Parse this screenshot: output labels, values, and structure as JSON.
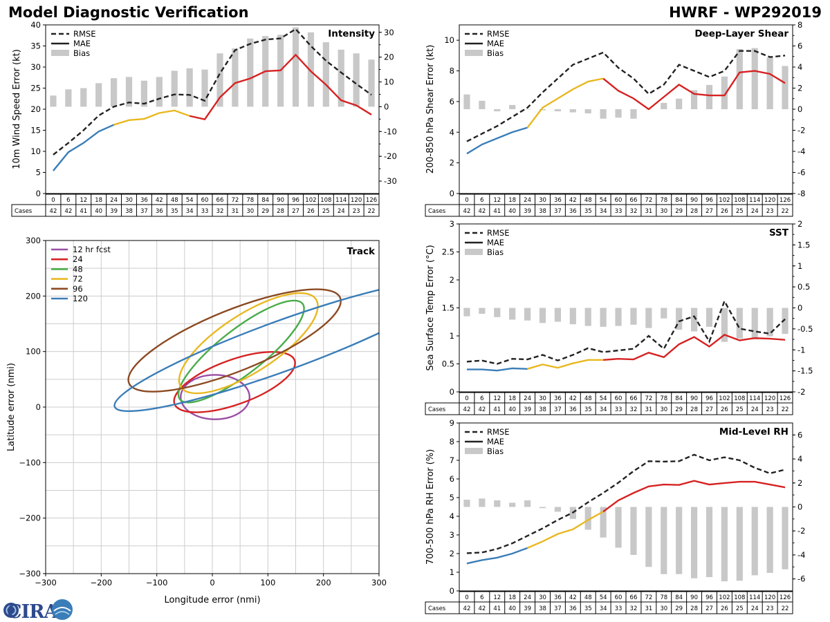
{
  "header": {
    "title_left": "Model Diagnostic Verification",
    "title_right": "HWRF - WP292019"
  },
  "logo": {
    "text": "CIRA"
  },
  "colors": {
    "rmse": "#222222",
    "bias": "#c8c8c8",
    "seg_blue": "#3a7db8",
    "seg_yellow": "#e8b820",
    "seg_red": "#d62222",
    "grid": "#cccccc",
    "track_12": "#9b4ea6",
    "track_24": "#d62222",
    "track_48": "#4aac4a",
    "track_72": "#e8b820",
    "track_96": "#8b4a22",
    "track_120": "#3a7db8"
  },
  "common": {
    "leads": [
      0,
      6,
      12,
      18,
      24,
      30,
      36,
      42,
      48,
      54,
      60,
      66,
      72,
      78,
      84,
      90,
      96,
      102,
      108,
      114,
      120,
      126
    ],
    "cases": [
      42,
      42,
      41,
      40,
      39,
      38,
      37,
      36,
      35,
      34,
      33,
      32,
      31,
      30,
      29,
      28,
      27,
      26,
      25,
      24,
      23,
      22
    ],
    "cases_label": "Cases",
    "legend": [
      "RMSE",
      "MAE",
      "Bias"
    ]
  },
  "chart_data": [
    {
      "id": "intensity",
      "type": "line",
      "title": "Intensity",
      "ylabel": "10m Wind Speed Error (kt)",
      "ylim": [
        0,
        40
      ],
      "yticks": [
        0,
        5,
        10,
        15,
        20,
        25,
        30,
        35,
        40
      ],
      "y2lim": [
        -35,
        33
      ],
      "y2ticks": [
        -30,
        -20,
        -10,
        0,
        10,
        20,
        30
      ],
      "rmse": [
        9.2,
        12,
        15,
        18.5,
        20.6,
        21.6,
        21.3,
        22.5,
        23.5,
        23.4,
        22,
        28.5,
        34,
        35.5,
        36.5,
        36.8,
        39,
        35,
        31.5,
        28.7,
        26,
        23.4
      ],
      "mae": [
        5.4,
        9.8,
        12,
        14.7,
        16.3,
        17.4,
        17.7,
        19.1,
        19.7,
        18.4,
        17.6,
        22.8,
        26.2,
        27.3,
        29,
        29.2,
        32.9,
        29,
        25.8,
        22.1,
        20.9,
        18.7
      ],
      "bias": [
        4.5,
        7,
        7.5,
        9.5,
        11.5,
        12,
        10.5,
        12,
        14.5,
        15.5,
        15,
        21.5,
        23.5,
        27.5,
        28.5,
        29,
        32,
        30,
        26,
        23,
        21.5,
        19
      ]
    },
    {
      "id": "shear",
      "type": "line",
      "title": "Deep-Layer Shear",
      "ylabel": "200-850 hPa Shear Error (kt)",
      "ylim": [
        0,
        11
      ],
      "yticks": [
        0,
        2,
        4,
        6,
        8,
        10
      ],
      "y2lim": [
        -8,
        8
      ],
      "y2ticks": [
        -8,
        -6,
        -4,
        -2,
        0,
        2,
        4,
        6,
        8
      ],
      "rmse": [
        3.4,
        3.9,
        4.4,
        5.0,
        5.6,
        6.6,
        7.5,
        8.4,
        8.8,
        9.2,
        8.2,
        7.5,
        6.5,
        7.1,
        8.4,
        8.0,
        7.6,
        8.0,
        9.3,
        9.3,
        8.9,
        9.0
      ],
      "mae": [
        2.6,
        3.2,
        3.6,
        4.0,
        4.3,
        5.6,
        6.2,
        6.8,
        7.3,
        7.5,
        6.7,
        6.2,
        5.5,
        6.3,
        7.1,
        6.5,
        6.4,
        6.4,
        7.9,
        8.0,
        7.8,
        7.2
      ],
      "bias": [
        1.4,
        0.8,
        -0.2,
        0.4,
        0,
        -0.1,
        -0.2,
        -0.3,
        -0.4,
        -0.9,
        -0.8,
        -0.9,
        0,
        0.6,
        1.0,
        1.8,
        2.3,
        3.1,
        5.7,
        5.8,
        4.9,
        4.1
      ]
    },
    {
      "id": "sst",
      "type": "line",
      "title": "SST",
      "ylabel": "Sea Surface Temp Error (°C)",
      "ylim": [
        0,
        3.0
      ],
      "yticks": [
        0.0,
        0.5,
        1.0,
        1.5,
        2.0,
        2.5,
        3.0
      ],
      "y2lim": [
        -2.0,
        2.0
      ],
      "y2ticks": [
        -2.0,
        -1.5,
        -1.0,
        -0.5,
        0.0,
        0.5,
        1.0,
        1.5,
        2.0
      ],
      "rmse": [
        0.54,
        0.56,
        0.5,
        0.59,
        0.58,
        0.66,
        0.56,
        0.66,
        0.78,
        0.71,
        0.74,
        0.77,
        1.0,
        0.77,
        1.26,
        1.35,
        0.9,
        1.62,
        1.13,
        1.08,
        1.04,
        1.3
      ],
      "mae": [
        0.4,
        0.4,
        0.38,
        0.42,
        0.41,
        0.49,
        0.43,
        0.51,
        0.57,
        0.57,
        0.59,
        0.58,
        0.7,
        0.62,
        0.85,
        0.98,
        0.81,
        1.02,
        0.92,
        0.96,
        0.95,
        0.93
      ],
      "bias": [
        -0.2,
        -0.14,
        -0.22,
        -0.28,
        -0.3,
        -0.36,
        -0.33,
        -0.39,
        -0.43,
        -0.45,
        -0.43,
        -0.4,
        -0.48,
        -0.25,
        -0.52,
        -0.56,
        -0.45,
        -0.81,
        -0.73,
        -0.75,
        -0.68,
        -0.62
      ]
    },
    {
      "id": "rh",
      "type": "line",
      "title": "Mid-Level RH",
      "ylabel": "700-500 hPa RH Error (%)",
      "ylim": [
        0,
        9
      ],
      "yticks": [
        0,
        1,
        2,
        3,
        4,
        5,
        6,
        7,
        8,
        9
      ],
      "y2lim": [
        -7,
        7
      ],
      "y2ticks": [
        -6,
        -4,
        -2,
        0,
        2,
        4,
        6
      ],
      "rmse": [
        2.02,
        2.06,
        2.25,
        2.55,
        2.95,
        3.35,
        3.8,
        4.2,
        4.75,
        5.25,
        5.8,
        6.42,
        6.95,
        6.93,
        6.95,
        7.3,
        7.0,
        7.16,
        7.0,
        6.6,
        6.3,
        6.5
      ],
      "mae": [
        1.47,
        1.65,
        1.78,
        2.0,
        2.3,
        2.65,
        3.05,
        3.3,
        3.8,
        4.25,
        4.85,
        5.25,
        5.6,
        5.7,
        5.68,
        5.9,
        5.7,
        5.78,
        5.85,
        5.85,
        5.7,
        5.55
      ],
      "bias": [
        0.6,
        0.7,
        0.55,
        0.35,
        0.55,
        -0.1,
        -0.4,
        -1.0,
        -1.9,
        -2.55,
        -3.4,
        -4.0,
        -5.0,
        -5.6,
        -5.6,
        -5.95,
        -5.85,
        -6.2,
        -6.15,
        -5.7,
        -5.5,
        -5.2
      ]
    },
    {
      "id": "track",
      "type": "scatter",
      "title": "Track",
      "xlabel": "Longitude error (nmi)",
      "ylabel": "Latitude error (nmi)",
      "xlim": [
        -300,
        300
      ],
      "ylim": [
        -300,
        300
      ],
      "xticks": [
        -300,
        -200,
        -100,
        0,
        100,
        200,
        300
      ],
      "yticks": [
        -300,
        -200,
        -100,
        0,
        100,
        200,
        300
      ],
      "legend": [
        "12 hr fcst",
        "24",
        "48",
        "72",
        "96",
        "120"
      ],
      "ellipses": [
        {
          "label": "12 hr fcst",
          "cx": 5,
          "cy": 18,
          "rx": 62,
          "ry": 40,
          "rot": 0
        },
        {
          "label": "24",
          "cx": 40,
          "cy": 45,
          "rx": 115,
          "ry": 40,
          "rot": 20
        },
        {
          "label": "48",
          "cx": 52,
          "cy": 100,
          "rx": 140,
          "ry": 40,
          "rot": 38
        },
        {
          "label": "72",
          "cx": 65,
          "cy": 115,
          "rx": 145,
          "ry": 52,
          "rot": 33
        },
        {
          "label": "96",
          "cx": 40,
          "cy": 120,
          "rx": 205,
          "ry": 55,
          "rot": 22
        },
        {
          "label": "120",
          "cx": 125,
          "cy": 110,
          "rx": 320,
          "ry": 45,
          "rot": 20
        }
      ]
    }
  ]
}
